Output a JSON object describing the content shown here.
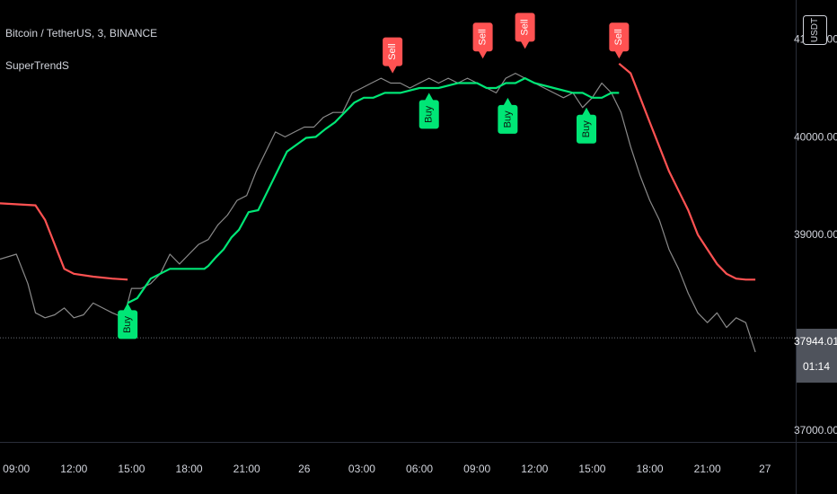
{
  "header": {
    "symbol": "Bitcoin / TetherUS, 3, BINANCE",
    "indicator": "SuperTrendS"
  },
  "currency_button": "USDT",
  "price_label": {
    "value": "37944.01",
    "countdown": "01:14"
  },
  "colors": {
    "background": "#000000",
    "price_line": "#8a8a8a",
    "uptrend": "#00e676",
    "downtrend": "#ff5252",
    "buy_label": "#00e676",
    "sell_label": "#ff5252",
    "axis_text": "#d1d4dc"
  },
  "chart_data": {
    "type": "line",
    "y_ticks": [
      "41000.00",
      "40000.00",
      "39000.00",
      "37000.00"
    ],
    "x_ticks": [
      {
        "t": 0,
        "label": "09:00"
      },
      {
        "t": 3,
        "label": "12:00"
      },
      {
        "t": 6,
        "label": "15:00"
      },
      {
        "t": 9,
        "label": "18:00"
      },
      {
        "t": 12,
        "label": "21:00"
      },
      {
        "t": 15,
        "label": "26"
      },
      {
        "t": 18,
        "label": "03:00"
      },
      {
        "t": 21,
        "label": "06:00"
      },
      {
        "t": 24,
        "label": "09:00"
      },
      {
        "t": 27,
        "label": "12:00"
      },
      {
        "t": 30,
        "label": "15:00"
      },
      {
        "t": 33,
        "label": "18:00"
      },
      {
        "t": 36,
        "label": "21:00"
      },
      {
        "t": 39,
        "label": "27"
      }
    ],
    "x_range": [
      -0.85,
      40.6
    ],
    "y_range": [
      36880,
      41400
    ],
    "current_price": 37944.01,
    "series": [
      {
        "name": "price",
        "points": [
          [
            -0.85,
            38750
          ],
          [
            0,
            38800
          ],
          [
            0.6,
            38500
          ],
          [
            1,
            38200
          ],
          [
            1.5,
            38150
          ],
          [
            2,
            38180
          ],
          [
            2.5,
            38250
          ],
          [
            3,
            38150
          ],
          [
            3.5,
            38180
          ],
          [
            4,
            38300
          ],
          [
            4.5,
            38250
          ],
          [
            5,
            38200
          ],
          [
            5.6,
            38150
          ],
          [
            6,
            38450
          ],
          [
            6.5,
            38450
          ],
          [
            7,
            38500
          ],
          [
            7.5,
            38600
          ],
          [
            8,
            38800
          ],
          [
            8.5,
            38700
          ],
          [
            9,
            38800
          ],
          [
            9.5,
            38900
          ],
          [
            10,
            38950
          ],
          [
            10.5,
            39100
          ],
          [
            11,
            39200
          ],
          [
            11.5,
            39350
          ],
          [
            12,
            39400
          ],
          [
            12.5,
            39650
          ],
          [
            13,
            39850
          ],
          [
            13.5,
            40050
          ],
          [
            14,
            40000
          ],
          [
            14.5,
            40050
          ],
          [
            15,
            40100
          ],
          [
            15.5,
            40100
          ],
          [
            16,
            40200
          ],
          [
            16.5,
            40250
          ],
          [
            17,
            40250
          ],
          [
            17.5,
            40450
          ],
          [
            18,
            40500
          ],
          [
            18.5,
            40550
          ],
          [
            19,
            40600
          ],
          [
            19.5,
            40550
          ],
          [
            20,
            40550
          ],
          [
            20.5,
            40500
          ],
          [
            21,
            40550
          ],
          [
            21.5,
            40600
          ],
          [
            22,
            40550
          ],
          [
            22.5,
            40600
          ],
          [
            23,
            40550
          ],
          [
            23.5,
            40600
          ],
          [
            24,
            40550
          ],
          [
            24.5,
            40500
          ],
          [
            25,
            40450
          ],
          [
            25.5,
            40600
          ],
          [
            26,
            40650
          ],
          [
            26.5,
            40600
          ],
          [
            27,
            40550
          ],
          [
            27.5,
            40500
          ],
          [
            28,
            40450
          ],
          [
            28.5,
            40400
          ],
          [
            29,
            40450
          ],
          [
            29.5,
            40300
          ],
          [
            30,
            40400
          ],
          [
            30.5,
            40550
          ],
          [
            31,
            40450
          ],
          [
            31.5,
            40250
          ],
          [
            32,
            39900
          ],
          [
            32.5,
            39600
          ],
          [
            33,
            39350
          ],
          [
            33.5,
            39150
          ],
          [
            34,
            38850
          ],
          [
            34.5,
            38650
          ],
          [
            35,
            38400
          ],
          [
            35.5,
            38200
          ],
          [
            36,
            38100
          ],
          [
            36.5,
            38200
          ],
          [
            37,
            38050
          ],
          [
            37.5,
            38150
          ],
          [
            38,
            38100
          ],
          [
            38.5,
            37800
          ]
        ]
      },
      {
        "name": "supertrend",
        "segments": [
          {
            "trend": "down",
            "points": [
              [
                -0.85,
                39320
              ],
              [
                1,
                39300
              ],
              [
                1.5,
                39150
              ],
              [
                2,
                38900
              ],
              [
                2.5,
                38650
              ],
              [
                3,
                38600
              ],
              [
                4,
                38570
              ],
              [
                5,
                38550
              ],
              [
                5.8,
                38540
              ]
            ]
          },
          {
            "trend": "up",
            "points": [
              [
                5.8,
                38300
              ],
              [
                6.3,
                38350
              ],
              [
                7,
                38550
              ],
              [
                8,
                38650
              ],
              [
                9,
                38650
              ],
              [
                9.8,
                38650
              ],
              [
                10,
                38680
              ],
              [
                10.4,
                38770
              ],
              [
                10.8,
                38850
              ],
              [
                11.2,
                38970
              ],
              [
                11.6,
                39050
              ],
              [
                12.1,
                39230
              ],
              [
                12.6,
                39250
              ],
              [
                13.1,
                39450
              ],
              [
                13.6,
                39650
              ],
              [
                14.1,
                39850
              ],
              [
                14.6,
                39920
              ],
              [
                15.1,
                39990
              ],
              [
                15.6,
                40000
              ],
              [
                16.1,
                40080
              ],
              [
                16.6,
                40150
              ],
              [
                17.1,
                40250
              ],
              [
                17.6,
                40350
              ],
              [
                18.1,
                40400
              ],
              [
                18.6,
                40400
              ],
              [
                19.2,
                40450
              ],
              [
                20,
                40450
              ],
              [
                21,
                40500
              ],
              [
                22,
                40500
              ],
              [
                23,
                40550
              ],
              [
                24,
                40550
              ],
              [
                24.5,
                40500
              ],
              [
                25,
                40500
              ],
              [
                25.5,
                40550
              ],
              [
                26,
                40550
              ],
              [
                26.5,
                40600
              ],
              [
                27,
                40550
              ],
              [
                28,
                40500
              ],
              [
                29,
                40450
              ],
              [
                29.5,
                40450
              ],
              [
                30,
                40400
              ],
              [
                30.5,
                40400
              ],
              [
                31,
                40450
              ],
              [
                31.4,
                40450
              ]
            ]
          },
          {
            "trend": "down",
            "points": [
              [
                31.4,
                40750
              ],
              [
                32,
                40650
              ],
              [
                32.5,
                40400
              ],
              [
                33,
                40150
              ],
              [
                33.5,
                39900
              ],
              [
                34,
                39650
              ],
              [
                34.5,
                39450
              ],
              [
                35,
                39250
              ],
              [
                35.5,
                39000
              ],
              [
                36,
                38850
              ],
              [
                36.5,
                38700
              ],
              [
                37,
                38600
              ],
              [
                37.5,
                38550
              ],
              [
                38,
                38540
              ],
              [
                38.5,
                38540
              ]
            ]
          }
        ]
      }
    ],
    "signals": [
      {
        "type": "Buy",
        "x": 5.8,
        "y": 38300
      },
      {
        "type": "Sell",
        "x": 19.6,
        "y": 40650
      },
      {
        "type": "Buy",
        "x": 21.5,
        "y": 40450
      },
      {
        "type": "Sell",
        "x": 24.3,
        "y": 40800
      },
      {
        "type": "Buy",
        "x": 25.6,
        "y": 40400
      },
      {
        "type": "Sell",
        "x": 26.5,
        "y": 40900
      },
      {
        "type": "Buy",
        "x": 29.7,
        "y": 40300
      },
      {
        "type": "Sell",
        "x": 31.4,
        "y": 40800
      }
    ]
  }
}
